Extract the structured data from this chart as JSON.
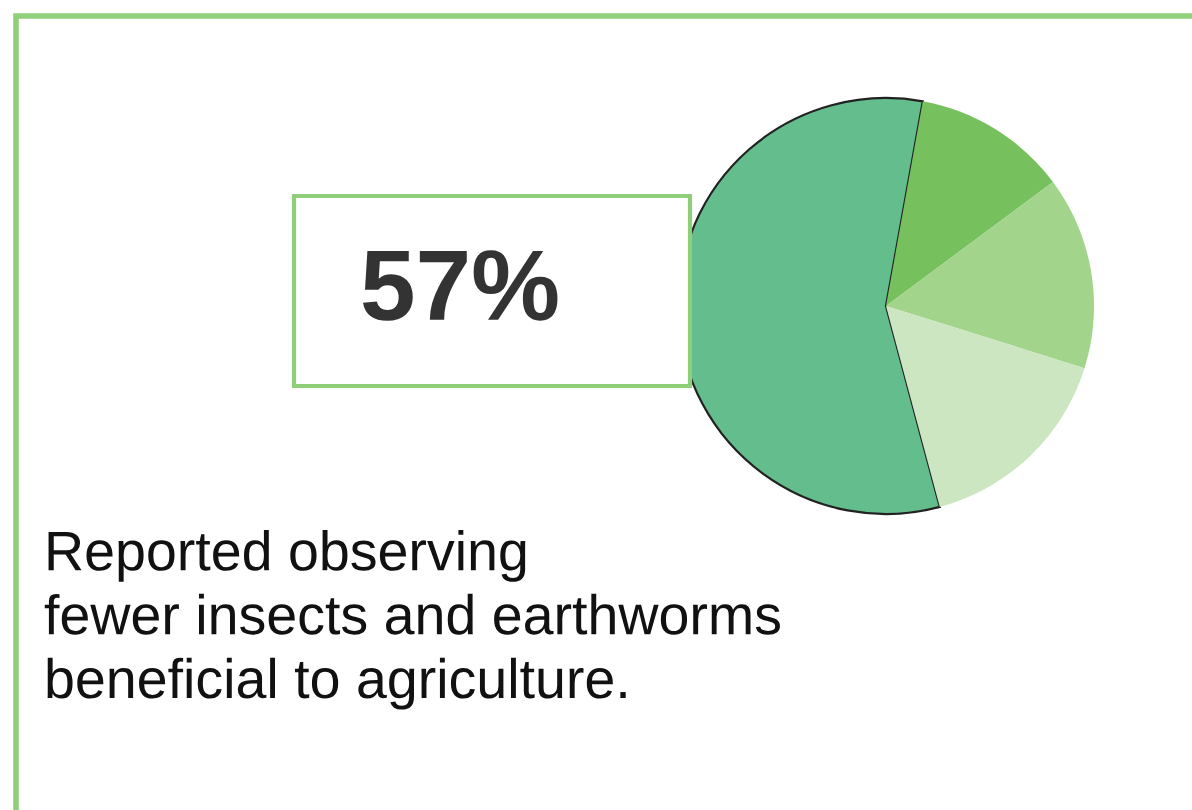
{
  "chart_data": {
    "type": "pie",
    "categories": [
      null,
      null,
      null,
      null
    ],
    "values": [
      57,
      12,
      15,
      16
    ],
    "colors": [
      "#63bd8c",
      "#77c05e",
      "#a2d48b",
      "#cbe6c0"
    ],
    "value_labels": [
      "57%",
      null,
      null,
      null
    ],
    "annotations": [
      "Reported observing\nfewer insects and earthworms\nbeneficial to agriculture."
    ]
  }
}
